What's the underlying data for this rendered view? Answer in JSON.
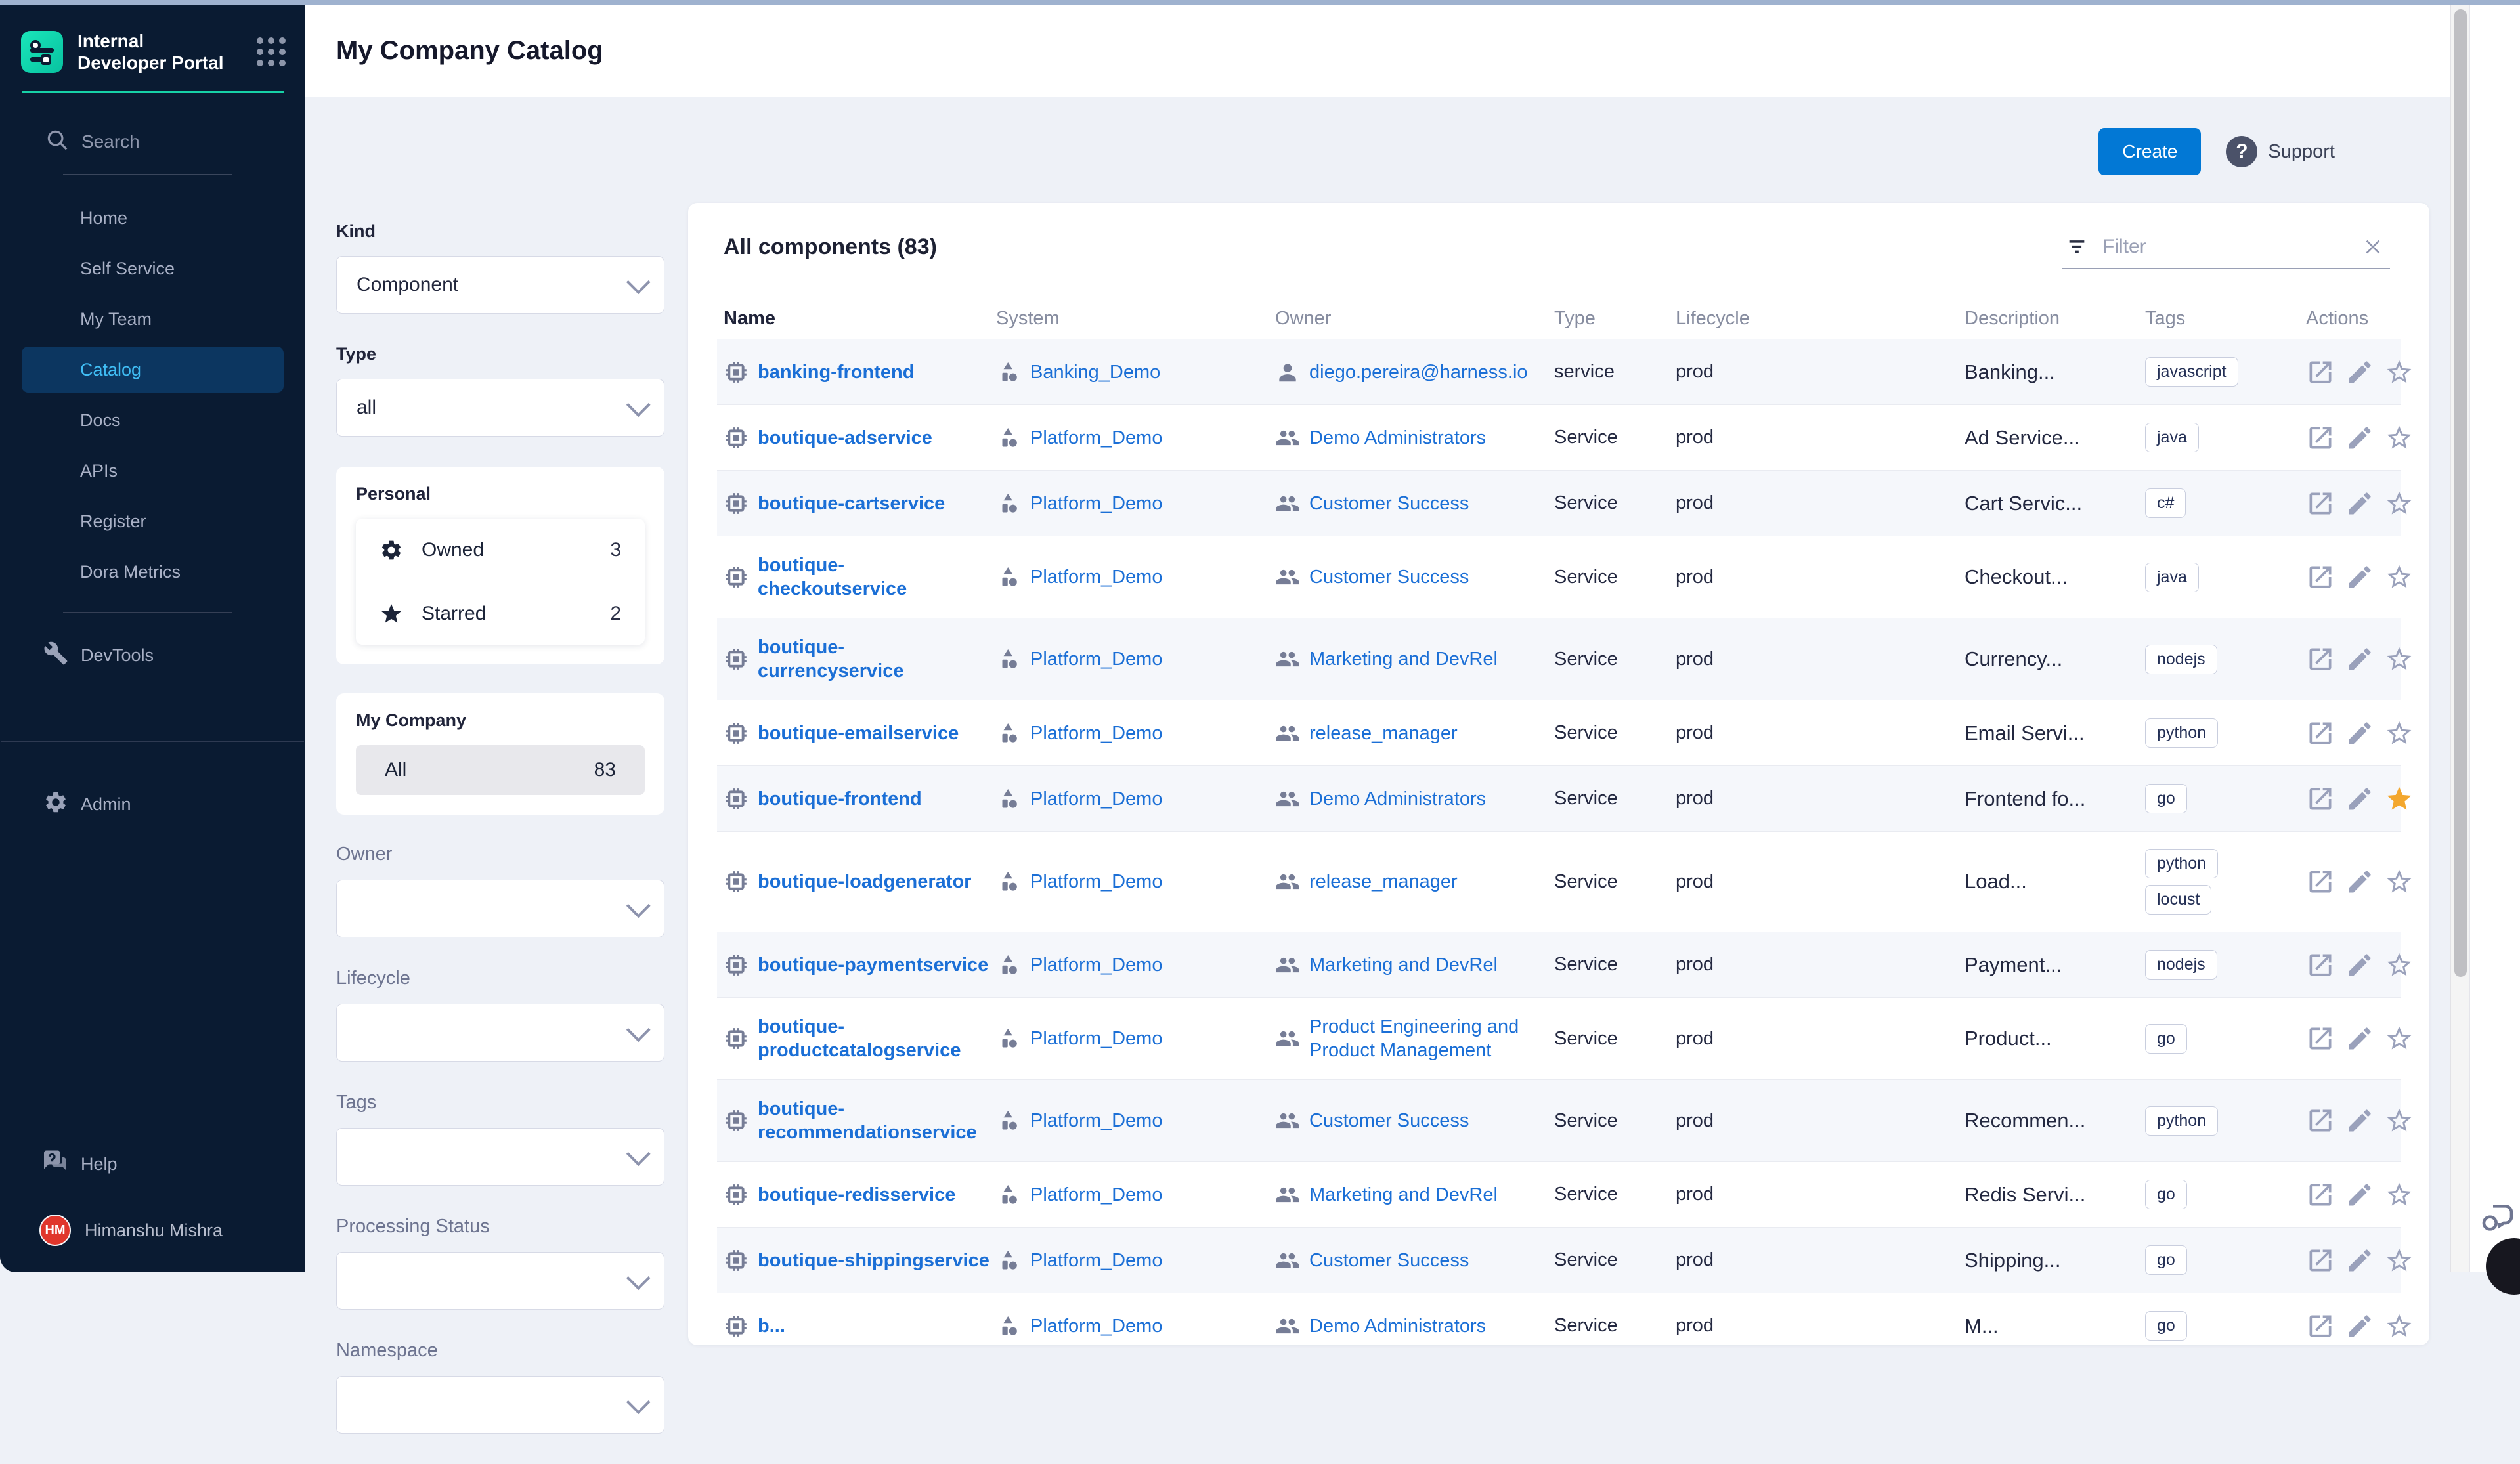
{
  "sidebar": {
    "logo_title": "Internal Developer Portal",
    "search_label": "Search",
    "nav": [
      {
        "label": "Home",
        "active": false
      },
      {
        "label": "Self Service",
        "active": false
      },
      {
        "label": "My Team",
        "active": false
      },
      {
        "label": "Catalog",
        "active": true
      },
      {
        "label": "Docs",
        "active": false
      },
      {
        "label": "APIs",
        "active": false
      },
      {
        "label": "Register",
        "active": false
      },
      {
        "label": "Dora Metrics",
        "active": false
      }
    ],
    "devtools_label": "DevTools",
    "admin_label": "Admin",
    "help_label": "Help",
    "user": {
      "initials": "HM",
      "name": "Himanshu Mishra"
    }
  },
  "header": {
    "title": "My Company Catalog"
  },
  "toolbar": {
    "create_label": "Create",
    "support_label": "Support"
  },
  "filters": {
    "kind_label": "Kind",
    "kind_value": "Component",
    "type_label": "Type",
    "type_value": "all",
    "personal_label": "Personal",
    "owned_label": "Owned",
    "owned_count": "3",
    "starred_label": "Starred",
    "starred_count": "2",
    "company_label": "My Company",
    "all_label": "All",
    "all_count": "83",
    "owner_label": "Owner",
    "lifecycle_label": "Lifecycle",
    "tags_label": "Tags",
    "processing_label": "Processing Status",
    "namespace_label": "Namespace"
  },
  "table": {
    "heading": "All components (83)",
    "filter_placeholder": "Filter",
    "columns": [
      "Name",
      "System",
      "Owner",
      "Type",
      "Lifecycle",
      "Description",
      "Tags",
      "Actions"
    ],
    "rows": [
      {
        "name": "banking-frontend",
        "system": "Banking_Demo",
        "owner": "diego.pereira@harness.io",
        "owner_icon": "user",
        "type": "service",
        "lifecycle": "prod",
        "description": "Banking...",
        "tags": [
          "javascript"
        ],
        "starred": false
      },
      {
        "name": "boutique-adservice",
        "system": "Platform_Demo",
        "owner": "Demo Administrators",
        "owner_icon": "group",
        "type": "Service",
        "lifecycle": "prod",
        "description": "Ad Service...",
        "tags": [
          "java"
        ],
        "starred": false
      },
      {
        "name": "boutique-cartservice",
        "system": "Platform_Demo",
        "owner": "Customer Success",
        "owner_icon": "group",
        "type": "Service",
        "lifecycle": "prod",
        "description": "Cart Servic...",
        "tags": [
          "c#"
        ],
        "starred": false
      },
      {
        "name": "boutique-checkoutservice",
        "system": "Platform_Demo",
        "owner": "Customer Success",
        "owner_icon": "group",
        "type": "Service",
        "lifecycle": "prod",
        "description": "Checkout...",
        "tags": [
          "java"
        ],
        "starred": false
      },
      {
        "name": "boutique-currencyservice",
        "system": "Platform_Demo",
        "owner": "Marketing and DevRel",
        "owner_icon": "group",
        "type": "Service",
        "lifecycle": "prod",
        "description": "Currency...",
        "tags": [
          "nodejs"
        ],
        "starred": false
      },
      {
        "name": "boutique-emailservice",
        "system": "Platform_Demo",
        "owner": "release_manager",
        "owner_icon": "group",
        "type": "Service",
        "lifecycle": "prod",
        "description": "Email Servi...",
        "tags": [
          "python"
        ],
        "starred": false
      },
      {
        "name": "boutique-frontend",
        "system": "Platform_Demo",
        "owner": "Demo Administrators",
        "owner_icon": "group",
        "type": "Service",
        "lifecycle": "prod",
        "description": "Frontend fo...",
        "tags": [
          "go"
        ],
        "starred": true
      },
      {
        "name": "boutique-loadgenerator",
        "system": "Platform_Demo",
        "owner": "release_manager",
        "owner_icon": "group",
        "type": "Service",
        "lifecycle": "prod",
        "description": "Load...",
        "tags": [
          "python",
          "locust"
        ],
        "starred": false
      },
      {
        "name": "boutique-paymentservice",
        "system": "Platform_Demo",
        "owner": "Marketing and DevRel",
        "owner_icon": "group",
        "type": "Service",
        "lifecycle": "prod",
        "description": "Payment...",
        "tags": [
          "nodejs"
        ],
        "starred": false
      },
      {
        "name": "boutique-productcatalogservice",
        "system": "Platform_Demo",
        "owner": "Product Engineering and Product Management",
        "owner_icon": "group",
        "type": "Service",
        "lifecycle": "prod",
        "description": "Product...",
        "tags": [
          "go"
        ],
        "starred": false
      },
      {
        "name": "boutique-recommendationservice",
        "system": "Platform_Demo",
        "owner": "Customer Success",
        "owner_icon": "group",
        "type": "Service",
        "lifecycle": "prod",
        "description": "Recommen...",
        "tags": [
          "python"
        ],
        "starred": false
      },
      {
        "name": "boutique-redisservice",
        "system": "Platform_Demo",
        "owner": "Marketing and DevRel",
        "owner_icon": "group",
        "type": "Service",
        "lifecycle": "prod",
        "description": "Redis Servi...",
        "tags": [
          "go"
        ],
        "starred": false
      },
      {
        "name": "boutique-shippingservice",
        "system": "Platform_Demo",
        "owner": "Customer Success",
        "owner_icon": "group",
        "type": "Service",
        "lifecycle": "prod",
        "description": "Shipping...",
        "tags": [
          "go"
        ],
        "starred": false
      },
      {
        "name": "b...",
        "system": "Platform_Demo",
        "owner": "Demo Administrators",
        "owner_icon": "group",
        "type": "Service",
        "lifecycle": "prod",
        "description": "M...",
        "tags": [
          "go"
        ],
        "starred": false
      }
    ]
  }
}
